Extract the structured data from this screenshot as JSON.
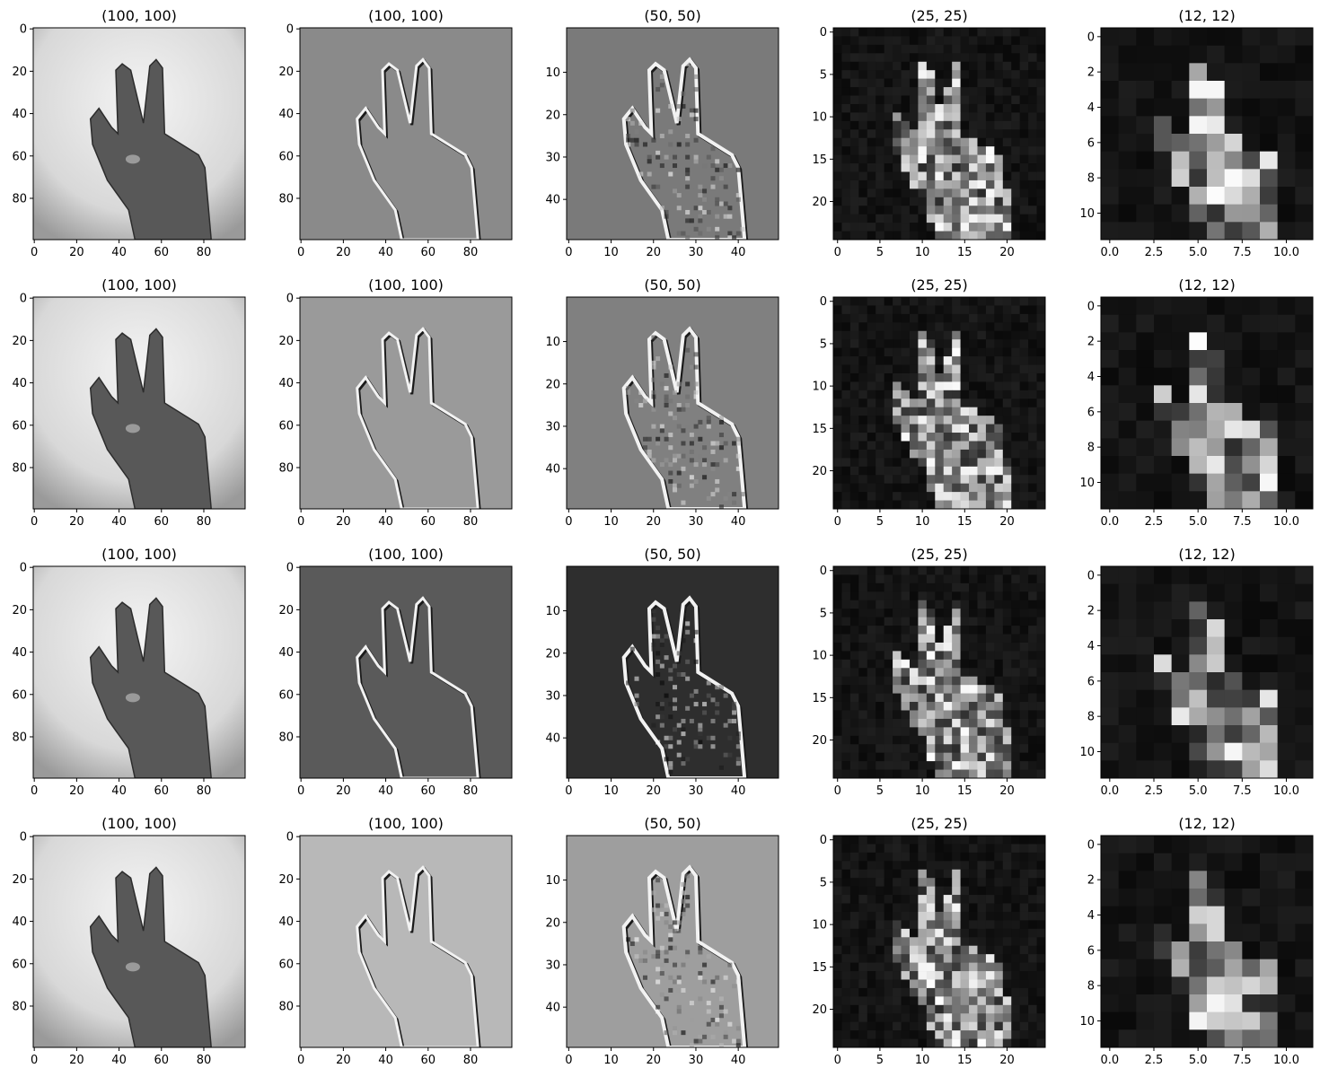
{
  "chart_data": {
    "type": "heatmap",
    "description_rows": 4,
    "description_cols": 5,
    "columns": [
      {
        "title": "(100, 100)",
        "size": 100,
        "xticks": [
          "0",
          "20",
          "40",
          "60",
          "80"
        ],
        "xtick_vals": [
          0,
          20,
          40,
          60,
          80
        ],
        "yticks": [
          "0",
          "20",
          "40",
          "60",
          "80"
        ],
        "ytick_vals": [
          0,
          20,
          40,
          60,
          80
        ],
        "style": "photo"
      },
      {
        "title": "(100, 100)",
        "size": 100,
        "xticks": [
          "0",
          "20",
          "40",
          "60",
          "80"
        ],
        "xtick_vals": [
          0,
          20,
          40,
          60,
          80
        ],
        "yticks": [
          "0",
          "20",
          "40",
          "60",
          "80"
        ],
        "ytick_vals": [
          0,
          20,
          40,
          60,
          80
        ],
        "style": "emboss"
      },
      {
        "title": "(50, 50)",
        "size": 50,
        "xticks": [
          "0",
          "10",
          "20",
          "30",
          "40"
        ],
        "xtick_vals": [
          0,
          10,
          20,
          30,
          40
        ],
        "yticks": [
          "10",
          "20",
          "30",
          "40"
        ],
        "ytick_vals": [
          10,
          20,
          30,
          40
        ],
        "style": "emboss-fine"
      },
      {
        "title": "(25, 25)",
        "size": 25,
        "xticks": [
          "0",
          "5",
          "10",
          "15",
          "20"
        ],
        "xtick_vals": [
          0,
          5,
          10,
          15,
          20
        ],
        "yticks": [
          "0",
          "5",
          "10",
          "15",
          "20"
        ],
        "ytick_vals": [
          0,
          5,
          10,
          15,
          20
        ],
        "style": "pixel"
      },
      {
        "title": "(12, 12)",
        "size": 12,
        "xticks": [
          "0.0",
          "2.5",
          "5.0",
          "7.5",
          "10.0"
        ],
        "xtick_vals": [
          0,
          2.5,
          5,
          7.5,
          10
        ],
        "yticks": [
          "0",
          "2",
          "4",
          "6",
          "8",
          "10"
        ],
        "ytick_vals": [
          0,
          2,
          4,
          6,
          8,
          10
        ],
        "style": "pixel"
      }
    ],
    "rows": [
      {
        "emboss_bg": "#8a8a8a",
        "fine_bg": "#7a7a7a",
        "pix_bg": "#111111"
      },
      {
        "emboss_bg": "#9a9a9a",
        "fine_bg": "#808080",
        "pix_bg": "#0e0e0e"
      },
      {
        "emboss_bg": "#5a5a5a",
        "fine_bg": "#2e2e2e",
        "pix_bg": "#0f0f0f"
      },
      {
        "emboss_bg": "#b8b8b8",
        "fine_bg": "#9e9e9e",
        "pix_bg": "#151515"
      }
    ],
    "colormap": "gray"
  }
}
